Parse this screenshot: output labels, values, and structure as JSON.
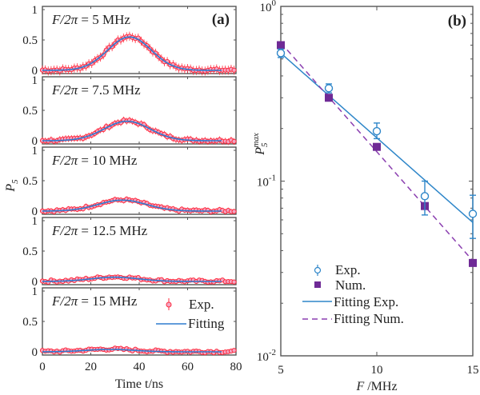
{
  "chart_data": [
    {
      "panel": "(a)",
      "type": "line",
      "xlabel": "Time t/ns",
      "ylabel": "P5",
      "xlim": [
        0,
        80
      ],
      "ylim": [
        0,
        1
      ],
      "xticks": [
        "0",
        "20",
        "40",
        "60",
        "80"
      ],
      "yticks": [
        "0",
        "0.5",
        "1"
      ],
      "legend": {
        "entries": [
          "Exp.",
          "Fitting"
        ],
        "placement": "top-right of bottom subplot"
      },
      "colors": {
        "exp": "#ff2a3c",
        "exp_fill": "#f2a6c4",
        "fit": "#2e7bcf"
      },
      "subplots": [
        {
          "title": "F/2π = 5 MHz",
          "peak": 0.55,
          "center": 36,
          "width": 9
        },
        {
          "title": "F/2π = 7.5 MHz",
          "peak": 0.32,
          "center": 35,
          "width": 9.5
        },
        {
          "title": "F/2π = 10 MHz",
          "peak": 0.18,
          "center": 33,
          "width": 10
        },
        {
          "title": "F/2π = 12.5 MHz",
          "peak": 0.07,
          "center": 30,
          "width": 10
        },
        {
          "title": "F/2π = 15 MHz",
          "peak": 0.04,
          "center": 28,
          "width": 10
        }
      ]
    },
    {
      "panel": "(b)",
      "type": "scatter",
      "xlabel": "F /MHz",
      "ylabel": "P5^max",
      "xlim": [
        5,
        15
      ],
      "ylim": [
        0.01,
        1
      ],
      "yscale": "log",
      "xticks": [
        "5",
        "10",
        "15"
      ],
      "yticks": [
        "10^0",
        "10^-1",
        "10^-2"
      ],
      "legend": {
        "entries": [
          "Exp.",
          "Num.",
          "Fitting Exp.",
          "Fitting Num."
        ],
        "placement": "bottom-left"
      },
      "colors": {
        "exp": "#2e86c9",
        "num": "#6f2a96"
      },
      "series": [
        {
          "name": "Exp.",
          "x": [
            5,
            7.5,
            10,
            12.5,
            15
          ],
          "y": [
            0.54,
            0.34,
            0.193,
            0.082,
            0.065
          ],
          "err_low": [
            0.51,
            0.32,
            0.175,
            0.064,
            0.047
          ],
          "err_high": [
            0.57,
            0.36,
            0.215,
            0.1,
            0.083
          ]
        },
        {
          "name": "Num.",
          "x": [
            5,
            7.5,
            10,
            12.5,
            15
          ],
          "y": [
            0.6,
            0.3,
            0.157,
            0.072,
            0.034
          ]
        },
        {
          "name": "Fitting Exp.",
          "x": [
            5,
            15
          ],
          "y": [
            0.54,
            0.058
          ]
        },
        {
          "name": "Fitting Num.",
          "x": [
            5,
            15
          ],
          "y": [
            0.62,
            0.035
          ]
        }
      ]
    }
  ]
}
